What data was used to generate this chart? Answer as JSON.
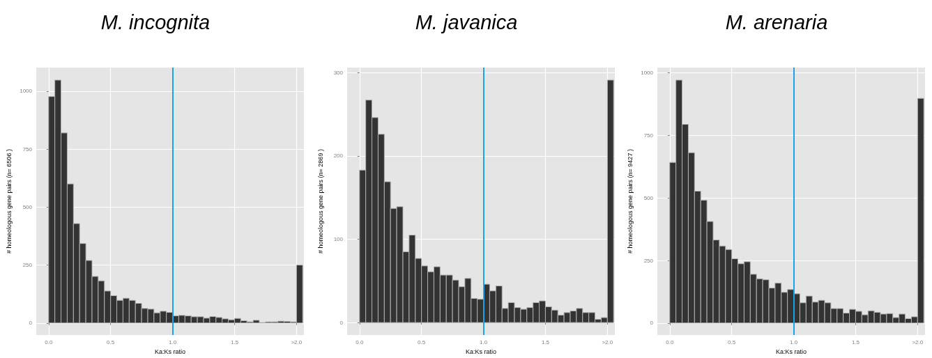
{
  "chart_data": [
    {
      "type": "histogram",
      "title": "M. incognita",
      "xlabel": "Ka:Ks ratio",
      "ylabel": "# homeologous gene pairs (n= 6506 )",
      "color": "#333333",
      "grid": true,
      "bins": [
        0,
        0.05,
        0.1,
        0.15,
        0.2,
        0.25,
        0.3,
        0.35,
        0.4,
        0.45,
        0.5,
        0.55,
        0.6,
        0.65,
        0.7,
        0.75,
        0.8,
        0.85,
        0.9,
        0.95,
        1,
        1.05,
        1.1,
        1.15,
        1.2,
        1.25,
        1.3,
        1.35,
        1.4,
        1.45,
        1.5,
        1.55,
        1.6,
        1.65,
        1.7,
        1.75,
        1.8,
        1.85,
        1.9,
        1.95,
        2,
        2.05
      ],
      "values": [
        977,
        1048,
        820,
        600,
        429,
        343,
        270,
        201,
        182,
        138,
        118,
        98,
        107,
        98,
        85,
        63,
        60,
        44,
        51,
        46,
        31,
        33,
        31,
        27,
        27,
        21,
        28,
        24,
        18,
        14,
        20,
        10,
        5,
        12,
        2,
        5,
        5,
        8,
        7,
        5,
        250
      ],
      "xlim": [
        -0.1,
        2.06
      ],
      "xticks": [
        {
          "value": 0,
          "label": "0.0"
        },
        {
          "value": 0.5,
          "label": "0.5"
        },
        {
          "value": 1,
          "label": "1.0"
        },
        {
          "value": 1.5,
          "label": "1.5"
        },
        {
          "value": 2,
          "label": ">2.0"
        }
      ],
      "ylim": [
        -52,
        1102
      ],
      "yticks": [
        0,
        250,
        500,
        750,
        1000
      ],
      "ref_lines": [
        {
          "axis": "x",
          "value": 1,
          "color": "#1aa3e8"
        }
      ]
    },
    {
      "type": "histogram",
      "title": "M. javanica",
      "xlabel": "Ka:Ks ratio",
      "ylabel": "# homeologous gene pairs (n= 2869 )",
      "color": "#333333",
      "grid": true,
      "bins": [
        0,
        0.05,
        0.1,
        0.15,
        0.2,
        0.25,
        0.3,
        0.35,
        0.4,
        0.45,
        0.5,
        0.55,
        0.6,
        0.65,
        0.7,
        0.75,
        0.8,
        0.85,
        0.9,
        0.95,
        1,
        1.05,
        1.1,
        1.15,
        1.2,
        1.25,
        1.3,
        1.35,
        1.4,
        1.45,
        1.5,
        1.55,
        1.6,
        1.65,
        1.7,
        1.75,
        1.8,
        1.85,
        1.9,
        1.95,
        2,
        2.05
      ],
      "values": [
        183,
        267,
        246,
        226,
        169,
        137,
        139,
        85,
        105,
        77,
        68,
        61,
        67,
        57,
        57,
        51,
        43,
        53,
        29,
        28,
        46,
        38,
        44,
        17,
        24,
        18,
        16,
        18,
        24,
        26,
        19,
        15,
        9,
        12,
        14,
        17,
        12,
        12,
        4,
        6,
        291
      ],
      "xlim": [
        -0.1,
        2.06
      ],
      "xticks": [
        {
          "value": 0,
          "label": "0.0"
        },
        {
          "value": 0.5,
          "label": "0.5"
        },
        {
          "value": 1,
          "label": "1.0"
        },
        {
          "value": 1.5,
          "label": "1.5"
        },
        {
          "value": 2,
          "label": ">2.0"
        }
      ],
      "ylim": [
        -15,
        306
      ],
      "yticks": [
        0,
        100,
        200,
        300
      ],
      "ref_lines": [
        {
          "axis": "x",
          "value": 1,
          "color": "#1aa3e8"
        }
      ]
    },
    {
      "type": "histogram",
      "title": "M. arenaria",
      "xlabel": "Ka:Ks ratio",
      "ylabel": "# homeologous gene pairs (n= 9427 )",
      "color": "#333333",
      "grid": true,
      "bins": [
        0,
        0.05,
        0.1,
        0.15,
        0.2,
        0.25,
        0.3,
        0.35,
        0.4,
        0.45,
        0.5,
        0.55,
        0.6,
        0.65,
        0.7,
        0.75,
        0.8,
        0.85,
        0.9,
        0.95,
        1,
        1.05,
        1.1,
        1.15,
        1.2,
        1.25,
        1.3,
        1.35,
        1.4,
        1.45,
        1.5,
        1.55,
        1.6,
        1.65,
        1.7,
        1.75,
        1.8,
        1.85,
        1.9,
        1.95,
        2,
        2.05
      ],
      "values": [
        642,
        971,
        794,
        681,
        527,
        491,
        406,
        332,
        308,
        294,
        257,
        237,
        245,
        195,
        177,
        173,
        140,
        160,
        123,
        134,
        117,
        81,
        108,
        84,
        91,
        81,
        58,
        58,
        40,
        55,
        47,
        33,
        49,
        43,
        36,
        38,
        22,
        36,
        18,
        25,
        898
      ],
      "xlim": [
        -0.1,
        2.06
      ],
      "xticks": [
        {
          "value": 0,
          "label": "0.0"
        },
        {
          "value": 0.5,
          "label": "0.5"
        },
        {
          "value": 1,
          "label": "1.0"
        },
        {
          "value": 1.5,
          "label": "1.5"
        },
        {
          "value": 2,
          "label": ">2.0"
        }
      ],
      "ylim": [
        -48,
        1021
      ],
      "yticks": [
        0,
        250,
        500,
        750,
        1000
      ],
      "ref_lines": [
        {
          "axis": "x",
          "value": 1,
          "color": "#1aa3e8"
        }
      ]
    }
  ]
}
